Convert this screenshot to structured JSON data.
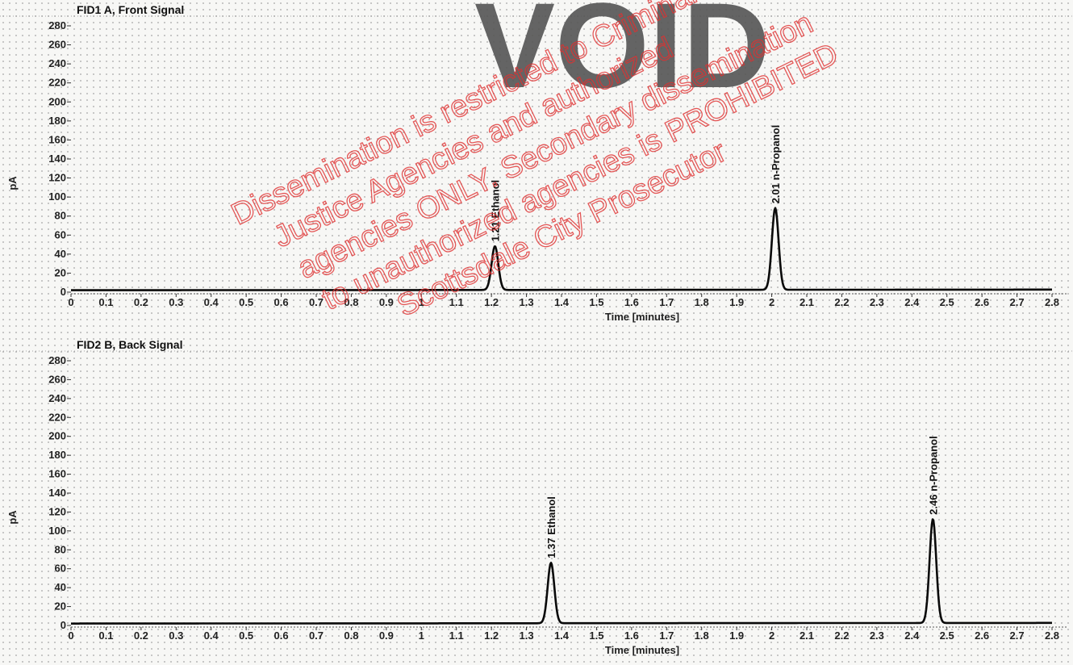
{
  "chart_data": [
    {
      "type": "line",
      "title": "FID1 A, Front Signal",
      "xlabel": "Time [minutes]",
      "ylabel": "pA",
      "xlim": [
        0,
        2.8
      ],
      "ylim": [
        0,
        280
      ],
      "xticks": [
        "0",
        "0.1",
        "0.2",
        "0.3",
        "0.4",
        "0.5",
        "0.6",
        "0.7",
        "0.8",
        "0.9",
        "1",
        "1.1",
        "1.2",
        "1.3",
        "1.4",
        "1.5",
        "1.6",
        "1.7",
        "1.8",
        "1.9",
        "2",
        "2.1",
        "2.2",
        "2.3",
        "2.4",
        "2.5",
        "2.6",
        "2.7",
        "2.8"
      ],
      "yticks": [
        "0",
        "20",
        "40",
        "60",
        "80",
        "100",
        "120",
        "140",
        "160",
        "180",
        "200",
        "220",
        "240",
        "260",
        "280"
      ],
      "baseline": 2,
      "peaks": [
        {
          "label": "1.21  Ethanol",
          "x": 1.21,
          "y": 48
        },
        {
          "label": "2.01  n-Propanol",
          "x": 2.01,
          "y": 88
        }
      ],
      "grid": true
    },
    {
      "type": "line",
      "title": "FID2 B, Back Signal",
      "xlabel": "Time [minutes]",
      "ylabel": "pA",
      "xlim": [
        0,
        2.8
      ],
      "ylim": [
        0,
        280
      ],
      "xticks": [
        "0",
        "0.1",
        "0.2",
        "0.3",
        "0.4",
        "0.5",
        "0.6",
        "0.7",
        "0.8",
        "0.9",
        "1",
        "1.1",
        "1.2",
        "1.3",
        "1.4",
        "1.5",
        "1.6",
        "1.7",
        "1.8",
        "1.9",
        "2",
        "2.1",
        "2.2",
        "2.3",
        "2.4",
        "2.5",
        "2.6",
        "2.7",
        "2.8"
      ],
      "yticks": [
        "0",
        "20",
        "40",
        "60",
        "80",
        "100",
        "120",
        "140",
        "160",
        "180",
        "200",
        "220",
        "240",
        "260",
        "280"
      ],
      "baseline": 2,
      "peaks": [
        {
          "label": "1.37  Ethanol",
          "x": 1.37,
          "y": 66
        },
        {
          "label": "2.46  n-Propanol",
          "x": 2.46,
          "y": 112
        }
      ],
      "grid": true
    }
  ],
  "overlay": {
    "stamp_text": "VOID",
    "watermark_lines": [
      "Dissemination is restricted to Criminal",
      "Justice Agencies and authorized",
      "agencies ONLY. Secondary dissemination",
      "to unauthorized agencies is PROHIBITED",
      "Scottsdale City Prosecutor"
    ],
    "watermark_color": "#e03030"
  }
}
